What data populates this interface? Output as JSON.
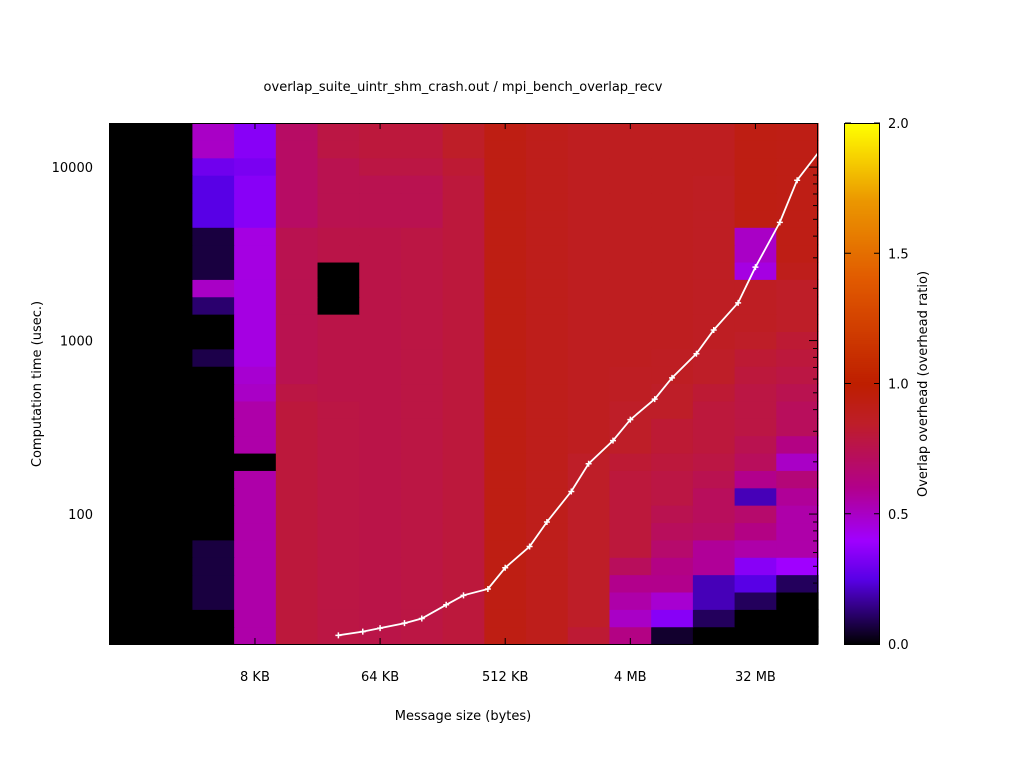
{
  "chart_data": {
    "type": "heatmap",
    "title": "overlap_suite_uintr_shm_crash.out / mpi_bench_overlap_recv",
    "xlabel": "Message size (bytes)",
    "ylabel": "Computation time (usec.)",
    "colorbar_label": "Overlap overhead (overhead ratio)",
    "x_tick_labels": [
      "8 KB",
      "64 KB",
      "512 KB",
      "4 MB",
      "32 MB"
    ],
    "y_tick_labels": [
      "100",
      "1000",
      "10000"
    ],
    "colorbar_tick_labels": [
      "0.0",
      "0.5",
      "1.0",
      "1.5",
      "2.0"
    ],
    "colorbar_range": [
      0,
      2
    ],
    "x_scale": "log",
    "y_scale": "log",
    "grid": false,
    "colormap": "gnuplot-black-blue-purple-red-orange-yellow",
    "heatmap": {
      "columns_bytes": [
        1024,
        2048,
        4096,
        8192,
        16384,
        32768,
        65536,
        131072,
        262144,
        524288,
        1048576,
        2097152,
        4194304,
        8388608,
        16777216,
        33554432,
        67108864
      ],
      "rows_usec": [
        20,
        25,
        32,
        40,
        50,
        63,
        80,
        100,
        125,
        160,
        200,
        250,
        320,
        400,
        500,
        630,
        800,
        1000,
        1250,
        1600,
        2000,
        2500,
        3200,
        4000,
        5000,
        6300,
        8000,
        10000,
        12500,
        16000
      ],
      "values": [
        [
          0,
          0,
          0,
          0.55,
          0.8,
          0.78,
          0.77,
          0.78,
          0.8,
          0.93,
          0.9,
          0.82,
          0.62,
          0.05,
          0,
          0,
          0
        ],
        [
          0,
          0,
          0,
          0.55,
          0.8,
          0.78,
          0.77,
          0.78,
          0.8,
          0.93,
          0.9,
          0.85,
          0.5,
          0.35,
          0.1,
          0,
          0
        ],
        [
          0,
          0,
          0.07,
          0.55,
          0.8,
          0.78,
          0.77,
          0.78,
          0.8,
          0.93,
          0.9,
          0.85,
          0.55,
          0.48,
          0.2,
          0.1,
          0
        ],
        [
          0,
          0,
          0.07,
          0.55,
          0.8,
          0.78,
          0.77,
          0.78,
          0.8,
          0.93,
          0.9,
          0.85,
          0.6,
          0.6,
          0.2,
          0.25,
          0.1
        ],
        [
          0,
          0,
          0.07,
          0.55,
          0.8,
          0.78,
          0.77,
          0.78,
          0.8,
          0.93,
          0.9,
          0.85,
          0.72,
          0.62,
          0.58,
          0.35,
          0.4
        ],
        [
          0,
          0,
          0.07,
          0.55,
          0.8,
          0.78,
          0.77,
          0.78,
          0.8,
          0.93,
          0.9,
          0.85,
          0.8,
          0.68,
          0.58,
          0.55,
          0.55
        ],
        [
          0,
          0,
          0,
          0.55,
          0.8,
          0.78,
          0.77,
          0.78,
          0.8,
          0.93,
          0.9,
          0.85,
          0.8,
          0.72,
          0.7,
          0.62,
          0.55
        ],
        [
          0,
          0,
          0,
          0.55,
          0.8,
          0.78,
          0.77,
          0.78,
          0.8,
          0.93,
          0.9,
          0.85,
          0.8,
          0.75,
          0.72,
          0.68,
          0.55
        ],
        [
          0,
          0,
          0,
          0.55,
          0.8,
          0.78,
          0.77,
          0.78,
          0.8,
          0.93,
          0.9,
          0.85,
          0.8,
          0.78,
          0.72,
          0.2,
          0.58
        ],
        [
          0,
          0,
          0,
          0.55,
          0.8,
          0.78,
          0.77,
          0.78,
          0.8,
          0.93,
          0.9,
          0.85,
          0.8,
          0.78,
          0.75,
          0.6,
          0.65
        ],
        [
          0,
          0,
          0,
          0,
          0.8,
          0.78,
          0.77,
          0.78,
          0.8,
          0.93,
          0.9,
          0.85,
          0.82,
          0.8,
          0.78,
          0.72,
          0.5
        ],
        [
          0,
          0,
          0,
          0.55,
          0.8,
          0.78,
          0.77,
          0.78,
          0.8,
          0.93,
          0.9,
          0.88,
          0.85,
          0.82,
          0.8,
          0.75,
          0.62
        ],
        [
          0,
          0,
          0,
          0.55,
          0.8,
          0.78,
          0.77,
          0.78,
          0.8,
          0.93,
          0.9,
          0.88,
          0.85,
          0.82,
          0.8,
          0.78,
          0.72
        ],
        [
          0,
          0,
          0,
          0.55,
          0.8,
          0.78,
          0.77,
          0.78,
          0.8,
          0.93,
          0.9,
          0.88,
          0.85,
          0.85,
          0.8,
          0.78,
          0.72
        ],
        [
          0,
          0,
          0,
          0.5,
          0.78,
          0.77,
          0.77,
          0.78,
          0.8,
          0.93,
          0.9,
          0.88,
          0.87,
          0.85,
          0.82,
          0.78,
          0.75
        ],
        [
          0,
          0,
          0,
          0.48,
          0.75,
          0.77,
          0.77,
          0.78,
          0.8,
          0.93,
          0.9,
          0.88,
          0.87,
          0.87,
          0.85,
          0.8,
          0.78
        ],
        [
          0,
          0,
          0.08,
          0.45,
          0.75,
          0.77,
          0.77,
          0.78,
          0.8,
          0.93,
          0.9,
          0.88,
          0.88,
          0.87,
          0.85,
          0.82,
          0.8
        ],
        [
          0,
          0,
          0,
          0.45,
          0.75,
          0.77,
          0.77,
          0.78,
          0.8,
          0.93,
          0.9,
          0.88,
          0.88,
          0.88,
          0.87,
          0.85,
          0.82
        ],
        [
          0,
          0,
          0,
          0.45,
          0.75,
          0.77,
          0.77,
          0.78,
          0.8,
          0.93,
          0.9,
          0.88,
          0.88,
          0.88,
          0.87,
          0.87,
          0.85
        ],
        [
          0,
          0,
          0.12,
          0.45,
          0.75,
          0,
          0.77,
          0.78,
          0.8,
          0.93,
          0.9,
          0.88,
          0.88,
          0.88,
          0.87,
          0.87,
          0.85
        ],
        [
          0,
          0,
          0.5,
          0.45,
          0.75,
          0,
          0.77,
          0.78,
          0.8,
          0.93,
          0.9,
          0.88,
          0.88,
          0.88,
          0.87,
          0.87,
          0.85
        ],
        [
          0,
          0,
          0.07,
          0.45,
          0.75,
          0,
          0.77,
          0.78,
          0.8,
          0.93,
          0.9,
          0.88,
          0.88,
          0.88,
          0.87,
          0.45,
          0.9
        ],
        [
          0,
          0,
          0.07,
          0.45,
          0.75,
          0.77,
          0.77,
          0.78,
          0.8,
          0.93,
          0.9,
          0.88,
          0.88,
          0.88,
          0.87,
          0.5,
          0.92
        ],
        [
          0,
          0,
          0.07,
          0.45,
          0.75,
          0.77,
          0.77,
          0.78,
          0.8,
          0.93,
          0.9,
          0.88,
          0.88,
          0.88,
          0.87,
          0.5,
          0.92
        ],
        [
          0,
          0,
          0.25,
          0.35,
          0.7,
          0.75,
          0.75,
          0.75,
          0.8,
          0.93,
          0.9,
          0.88,
          0.88,
          0.88,
          0.87,
          0.93,
          0.92
        ],
        [
          0,
          0,
          0.25,
          0.35,
          0.7,
          0.75,
          0.75,
          0.75,
          0.8,
          0.93,
          0.9,
          0.88,
          0.88,
          0.88,
          0.87,
          0.93,
          0.92
        ],
        [
          0,
          0,
          0.25,
          0.35,
          0.7,
          0.75,
          0.75,
          0.75,
          0.8,
          0.93,
          0.9,
          0.88,
          0.88,
          0.88,
          0.87,
          0.93,
          0.92
        ],
        [
          0,
          0,
          0.3,
          0.32,
          0.7,
          0.75,
          0.78,
          0.78,
          0.82,
          0.93,
          0.9,
          0.88,
          0.88,
          0.88,
          0.88,
          0.93,
          0.92
        ],
        [
          0,
          0,
          0.5,
          0.35,
          0.7,
          0.78,
          0.8,
          0.8,
          0.85,
          0.93,
          0.9,
          0.88,
          0.88,
          0.88,
          0.88,
          0.93,
          0.92
        ],
        [
          0,
          0,
          0.5,
          0.35,
          0.7,
          0.78,
          0.8,
          0.8,
          0.85,
          0.93,
          0.9,
          0.88,
          0.88,
          0.88,
          0.88,
          0.93,
          0.92
        ]
      ]
    },
    "series": [
      {
        "type": "line",
        "color": "#ffffff",
        "x_bytes": [
          32768,
          49152,
          65536,
          98304,
          131072,
          196608,
          262144,
          393216,
          524288,
          786432,
          1048576,
          1572864,
          2097152,
          3145728,
          4194304,
          6291456,
          8388608,
          12582912,
          16777216,
          25165824,
          33554432,
          50331648,
          67108864,
          100663296
        ],
        "y_usec": [
          20,
          21,
          22,
          23.5,
          25,
          30,
          34,
          37,
          49,
          65,
          90,
          135,
          195,
          265,
          350,
          460,
          610,
          840,
          1150,
          1650,
          2650,
          4800,
          8400,
          12800
        ]
      }
    ]
  }
}
